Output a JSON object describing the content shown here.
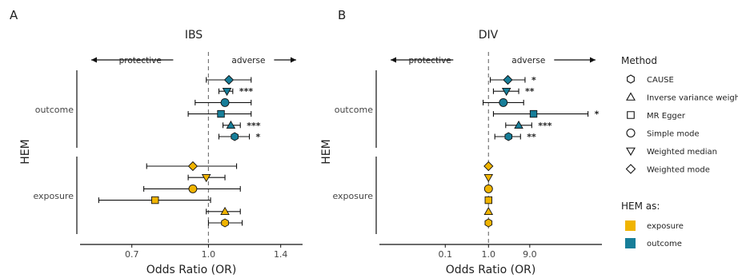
{
  "chart_data": [
    {
      "panel_letter": "A",
      "type": "scatter",
      "subtype": "forest-plot",
      "title": "IBS",
      "xlabel": "Odds Ratio (OR)",
      "ylabel": "HEM",
      "x_scale": "log",
      "xlim": [
        0.55,
        1.55
      ],
      "x_ticks": [
        "0.7",
        "1.0",
        "1.4"
      ],
      "x_tick_values": [
        0.7,
        1.0,
        1.4
      ],
      "reference_line": 1.0,
      "direction_labels": {
        "left": "protective",
        "right": "adverse"
      },
      "y_groups": [
        "outcome",
        "exposure"
      ],
      "points": [
        {
          "group": "outcome",
          "method": "Weighted mode",
          "or": 1.1,
          "lo": 0.99,
          "hi": 1.22,
          "sig": ""
        },
        {
          "group": "outcome",
          "method": "Weighted median",
          "or": 1.09,
          "lo": 1.05,
          "hi": 1.12,
          "sig": "***"
        },
        {
          "group": "outcome",
          "method": "Simple mode",
          "or": 1.08,
          "lo": 0.94,
          "hi": 1.22,
          "sig": ""
        },
        {
          "group": "outcome",
          "method": "MR Egger",
          "or": 1.06,
          "lo": 0.91,
          "hi": 1.22,
          "sig": ""
        },
        {
          "group": "outcome",
          "method": "Inverse variance weighted",
          "or": 1.11,
          "lo": 1.07,
          "hi": 1.16,
          "sig": "***"
        },
        {
          "group": "outcome",
          "method": "CAUSE",
          "or": 1.13,
          "lo": 1.05,
          "hi": 1.21,
          "sig": "*"
        },
        {
          "group": "exposure",
          "method": "Weighted mode",
          "or": 0.93,
          "lo": 0.75,
          "hi": 1.14,
          "sig": ""
        },
        {
          "group": "exposure",
          "method": "Weighted median",
          "or": 0.99,
          "lo": 0.91,
          "hi": 1.08,
          "sig": ""
        },
        {
          "group": "exposure",
          "method": "Simple mode",
          "or": 0.93,
          "lo": 0.74,
          "hi": 1.16,
          "sig": ""
        },
        {
          "group": "exposure",
          "method": "MR Egger",
          "or": 0.78,
          "lo": 0.6,
          "hi": 1.01,
          "sig": ""
        },
        {
          "group": "exposure",
          "method": "Inverse variance weighted",
          "or": 1.08,
          "lo": 0.99,
          "hi": 1.16,
          "sig": ""
        },
        {
          "group": "exposure",
          "method": "CAUSE",
          "or": 1.08,
          "lo": 1.0,
          "hi": 1.17,
          "sig": ""
        }
      ]
    },
    {
      "panel_letter": "B",
      "type": "scatter",
      "subtype": "forest-plot",
      "title": "DIV",
      "xlabel": "Odds Ratio (OR)",
      "ylabel": "HEM",
      "x_scale": "log",
      "xlim": [
        0.003,
        420
      ],
      "x_ticks": [
        "0.1",
        "1.0",
        "9.0"
      ],
      "x_tick_values": [
        0.1,
        1.0,
        9.0
      ],
      "reference_line": 1.0,
      "direction_labels": {
        "left": "protective",
        "right": "adverse"
      },
      "y_groups": [
        "outcome",
        "exposure"
      ],
      "points": [
        {
          "group": "outcome",
          "method": "Weighted mode",
          "or": 2.8,
          "lo": 1.1,
          "hi": 7.0,
          "sig": "*"
        },
        {
          "group": "outcome",
          "method": "Weighted median",
          "or": 2.6,
          "lo": 1.3,
          "hi": 5.0,
          "sig": "**"
        },
        {
          "group": "outcome",
          "method": "Simple mode",
          "or": 2.2,
          "lo": 0.75,
          "hi": 6.5,
          "sig": ""
        },
        {
          "group": "outcome",
          "method": "MR Egger",
          "or": 11.0,
          "lo": 1.3,
          "hi": 200.0,
          "sig": "*"
        },
        {
          "group": "outcome",
          "method": "Inverse variance weighted",
          "or": 5.0,
          "lo": 2.5,
          "hi": 10.0,
          "sig": "***"
        },
        {
          "group": "outcome",
          "method": "CAUSE",
          "or": 2.9,
          "lo": 1.4,
          "hi": 5.5,
          "sig": "**"
        },
        {
          "group": "exposure",
          "method": "Weighted mode",
          "or": 1.0,
          "lo": 1.0,
          "hi": 1.0,
          "sig": ""
        },
        {
          "group": "exposure",
          "method": "Weighted median",
          "or": 1.0,
          "lo": 1.0,
          "hi": 1.0,
          "sig": ""
        },
        {
          "group": "exposure",
          "method": "Simple mode",
          "or": 1.0,
          "lo": 1.0,
          "hi": 1.0,
          "sig": ""
        },
        {
          "group": "exposure",
          "method": "MR Egger",
          "or": 1.0,
          "lo": 1.0,
          "hi": 1.0,
          "sig": ""
        },
        {
          "group": "exposure",
          "method": "Inverse variance weighted",
          "or": 1.0,
          "lo": 1.0,
          "hi": 1.0,
          "sig": ""
        },
        {
          "group": "exposure",
          "method": "CAUSE",
          "or": 1.0,
          "lo": 1.0,
          "hi": 1.0,
          "sig": ""
        }
      ]
    }
  ],
  "legend": {
    "method_title": "Method",
    "methods": [
      {
        "name": "CAUSE",
        "shape": "hexagon"
      },
      {
        "name": "Inverse variance weighted",
        "shape": "triangle-up"
      },
      {
        "name": "MR Egger",
        "shape": "square"
      },
      {
        "name": "Simple mode",
        "shape": "circle"
      },
      {
        "name": "Weighted median",
        "shape": "triangle-down"
      },
      {
        "name": "Weighted mode",
        "shape": "diamond"
      }
    ],
    "color_title": "HEM as:",
    "colors": [
      {
        "name": "exposure",
        "color": "#F0B400"
      },
      {
        "name": "outcome",
        "color": "#177E99"
      }
    ]
  }
}
